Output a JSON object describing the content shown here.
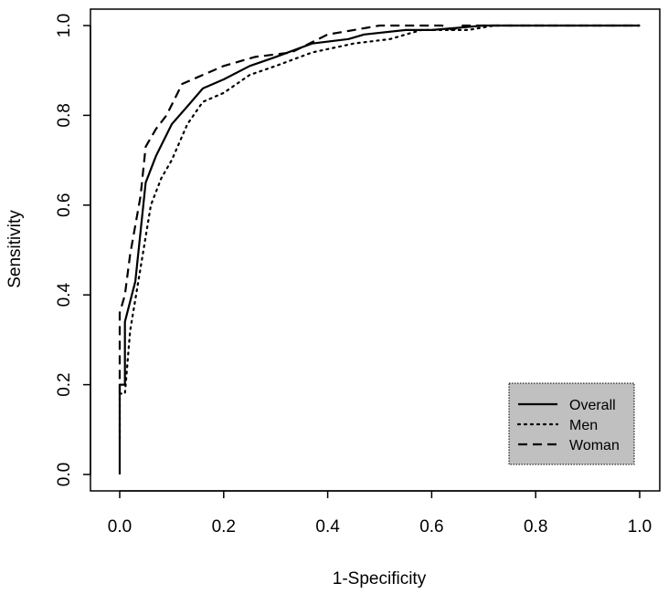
{
  "chart_data": {
    "type": "line",
    "xlabel": "1-Specificity",
    "ylabel": "Sensitivity",
    "xlim": [
      0,
      1
    ],
    "ylim": [
      0,
      1
    ],
    "x_ticks": [
      "0.0",
      "0.2",
      "0.4",
      "0.6",
      "0.8",
      "1.0"
    ],
    "y_ticks": [
      "0.0",
      "0.2",
      "0.4",
      "0.6",
      "0.8",
      "1.0"
    ],
    "grid": false,
    "legend": {
      "position": "bottom-right",
      "background": "#c0c0c0"
    },
    "series": [
      {
        "name": "Overall",
        "style": "solid",
        "color": "#000000",
        "points": [
          [
            0,
            0
          ],
          [
            0,
            0.15
          ],
          [
            0,
            0.2
          ],
          [
            0.01,
            0.2
          ],
          [
            0.01,
            0.34
          ],
          [
            0.03,
            0.43
          ],
          [
            0.05,
            0.65
          ],
          [
            0.07,
            0.71
          ],
          [
            0.1,
            0.78
          ],
          [
            0.13,
            0.82
          ],
          [
            0.16,
            0.86
          ],
          [
            0.2,
            0.88
          ],
          [
            0.25,
            0.91
          ],
          [
            0.3,
            0.93
          ],
          [
            0.37,
            0.96
          ],
          [
            0.44,
            0.97
          ],
          [
            0.47,
            0.98
          ],
          [
            0.55,
            0.99
          ],
          [
            0.6,
            0.99
          ],
          [
            0.65,
            0.995
          ],
          [
            0.7,
            1
          ],
          [
            1,
            1
          ]
        ]
      },
      {
        "name": "Men",
        "style": "dotted",
        "color": "#000000",
        "points": [
          [
            0,
            0.08
          ],
          [
            0,
            0.18
          ],
          [
            0.01,
            0.18
          ],
          [
            0.02,
            0.32
          ],
          [
            0.04,
            0.46
          ],
          [
            0.06,
            0.6
          ],
          [
            0.08,
            0.66
          ],
          [
            0.1,
            0.7
          ],
          [
            0.13,
            0.78
          ],
          [
            0.16,
            0.83
          ],
          [
            0.2,
            0.85
          ],
          [
            0.25,
            0.89
          ],
          [
            0.3,
            0.91
          ],
          [
            0.37,
            0.94
          ],
          [
            0.45,
            0.96
          ],
          [
            0.52,
            0.97
          ],
          [
            0.58,
            0.99
          ],
          [
            0.67,
            0.99
          ],
          [
            0.72,
            1
          ],
          [
            1,
            1
          ]
        ]
      },
      {
        "name": "Woman",
        "style": "dashed",
        "color": "#000000",
        "points": [
          [
            0,
            0.18
          ],
          [
            0,
            0.36
          ],
          [
            0.01,
            0.4
          ],
          [
            0.02,
            0.49
          ],
          [
            0.04,
            0.62
          ],
          [
            0.05,
            0.73
          ],
          [
            0.07,
            0.77
          ],
          [
            0.09,
            0.8
          ],
          [
            0.12,
            0.87
          ],
          [
            0.16,
            0.89
          ],
          [
            0.2,
            0.91
          ],
          [
            0.26,
            0.93
          ],
          [
            0.33,
            0.94
          ],
          [
            0.4,
            0.98
          ],
          [
            0.45,
            0.99
          ],
          [
            0.5,
            1
          ],
          [
            0.62,
            1
          ],
          [
            0.64,
            0.99
          ],
          [
            0.66,
            1
          ],
          [
            1,
            1
          ]
        ]
      }
    ]
  }
}
